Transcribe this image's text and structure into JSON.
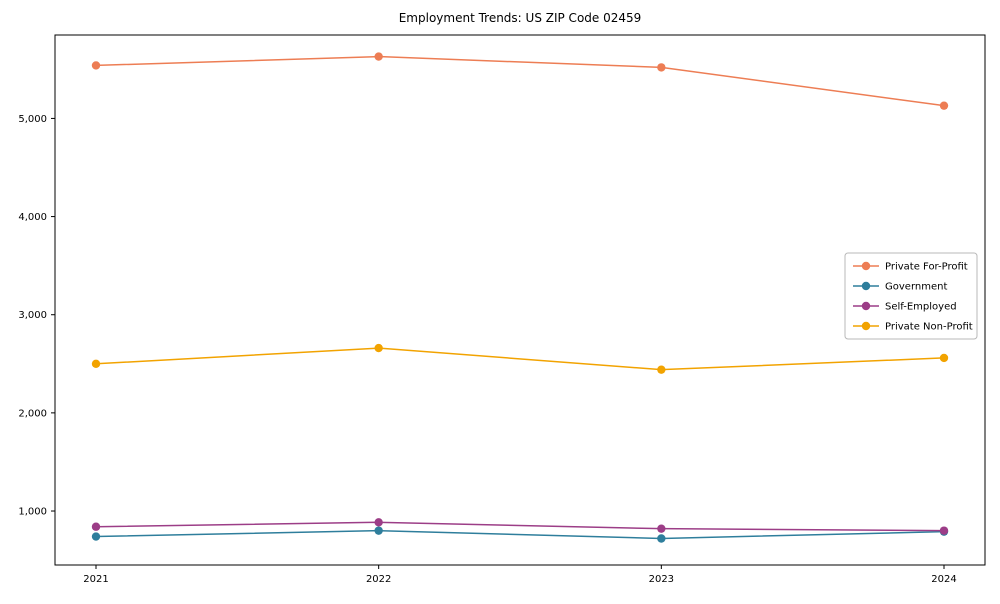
{
  "title": "Employment Trends: US ZIP Code 02459",
  "chart_data": {
    "type": "line",
    "x": [
      2021,
      2022,
      2023,
      2024
    ],
    "x_tick_labels": [
      "2021",
      "2022",
      "2023",
      "2024"
    ],
    "series": [
      {
        "name": "Private For-Profit",
        "color": "#ed7d54",
        "values": [
          5540,
          5630,
          5520,
          5130
        ]
      },
      {
        "name": "Government",
        "color": "#2e7e9c",
        "values": [
          740,
          800,
          720,
          790
        ]
      },
      {
        "name": "Self-Employed",
        "color": "#9c3d87",
        "values": [
          840,
          885,
          820,
          800
        ]
      },
      {
        "name": "Private Non-Profit",
        "color": "#f2a300",
        "values": [
          2500,
          2660,
          2440,
          2560
        ]
      }
    ],
    "ylim": [
      450,
      5850
    ],
    "y_ticks": [
      1000,
      2000,
      3000,
      4000,
      5000
    ],
    "y_tick_labels": [
      "1,000",
      "2,000",
      "3,000",
      "4,000",
      "5,000"
    ],
    "xlabel": "",
    "ylabel": "",
    "grid": false,
    "legend_position": "center right",
    "marker": "circle"
  }
}
